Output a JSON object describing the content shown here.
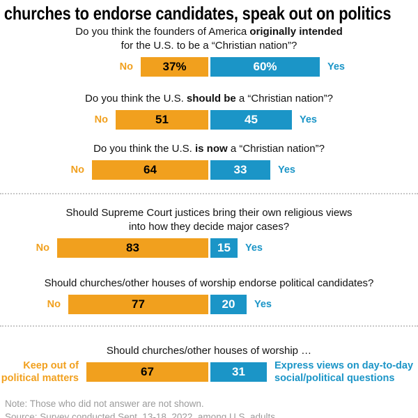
{
  "title": "churches to endorse candidates, speak out on politics",
  "colors": {
    "no_orange": "#F1A01E",
    "yes_blue": "#1B95C7"
  },
  "chart_data": {
    "type": "bar",
    "orientation": "horizontal-paired",
    "value_unit": "percent",
    "rows": [
      {
        "question_prefix": "Do you think the founders of America ",
        "question_bold": "originally intended",
        "question_suffix": "",
        "question_line2": "for the U.S. to be a “Christian nation”?",
        "left_label_line1": "No",
        "left_label_line2": "",
        "right_label_line1": "Yes",
        "right_label_line2": "",
        "left_value": 37,
        "right_value": 60,
        "left_display": "37%",
        "right_display": "60%"
      },
      {
        "question_prefix": "Do you think the U.S. ",
        "question_bold": "should be",
        "question_suffix": " a “Christian nation”?",
        "question_line2": "",
        "left_label_line1": "No",
        "left_label_line2": "",
        "right_label_line1": "Yes",
        "right_label_line2": "",
        "left_value": 51,
        "right_value": 45,
        "left_display": "51",
        "right_display": "45"
      },
      {
        "question_prefix": "Do you think the U.S. ",
        "question_bold": "is now",
        "question_suffix": " a “Christian nation”?",
        "question_line2": "",
        "left_label_line1": "No",
        "left_label_line2": "",
        "right_label_line1": "Yes",
        "right_label_line2": "",
        "left_value": 64,
        "right_value": 33,
        "left_display": "64",
        "right_display": "33"
      },
      {
        "question_prefix": "Should Supreme Court justices bring their own religious views",
        "question_bold": "",
        "question_suffix": "",
        "question_line2": "into how they decide major cases?",
        "left_label_line1": "No",
        "left_label_line2": "",
        "right_label_line1": "Yes",
        "right_label_line2": "",
        "left_value": 83,
        "right_value": 15,
        "left_display": "83",
        "right_display": "15"
      },
      {
        "question_prefix": "Should churches/other houses of worship endorse political candidates?",
        "question_bold": "",
        "question_suffix": "",
        "question_line2": "",
        "left_label_line1": "No",
        "left_label_line2": "",
        "right_label_line1": "Yes",
        "right_label_line2": "",
        "left_value": 77,
        "right_value": 20,
        "left_display": "77",
        "right_display": "20"
      },
      {
        "question_prefix": "Should churches/other houses of worship …",
        "question_bold": "",
        "question_suffix": "",
        "question_line2": "",
        "left_label_line1": "Keep out of",
        "left_label_line2": "political matters",
        "right_label_line1": "Express views on day-to-day",
        "right_label_line2": "social/political questions",
        "left_value": 67,
        "right_value": 31,
        "left_display": "67",
        "right_display": "31"
      }
    ]
  },
  "footer": {
    "note": "Note: Those who did not answer are not shown.",
    "source": "Source: Survey conducted Sept. 13-18, 2022, among U.S. adults."
  }
}
